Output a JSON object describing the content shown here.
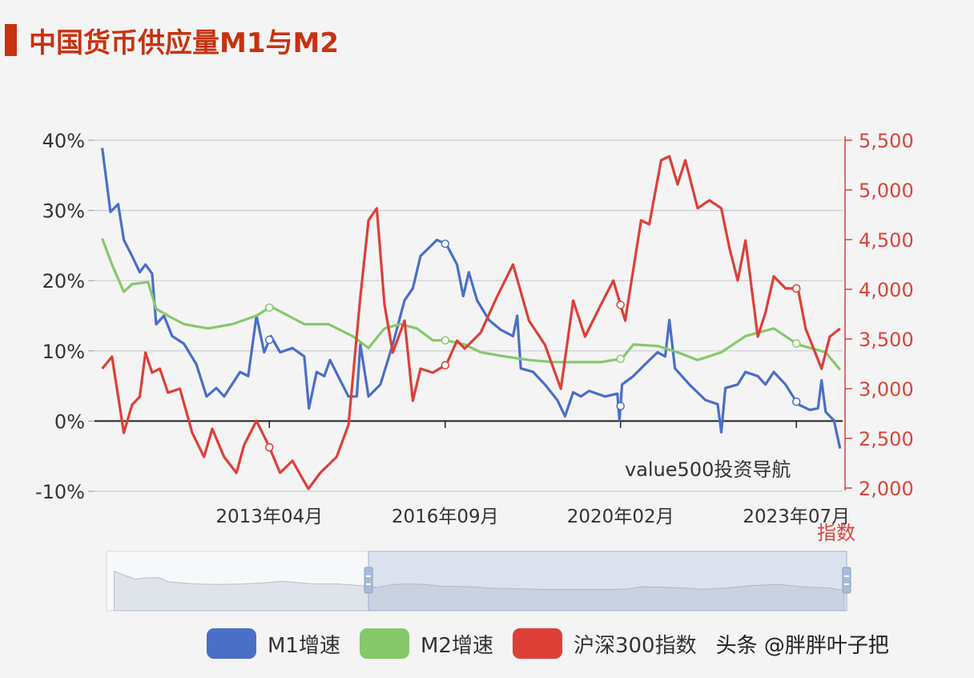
{
  "title": "中国货币供应量M1与M2",
  "watermark": "value500投资导航",
  "credit": "头条 @胖胖叶子把",
  "chart_data": {
    "type": "line",
    "title": "中国货币供应量M1与M2",
    "xlim": [
      2009.85,
      2024.4
    ],
    "x_ticks": [
      {
        "label": "2013年04月",
        "x": 2013.25
      },
      {
        "label": "2016年09月",
        "x": 2016.67
      },
      {
        "label": "2020年02月",
        "x": 2020.08
      },
      {
        "label": "2023年07月",
        "x": 2023.5
      }
    ],
    "y_left": {
      "lim": [
        -10,
        40
      ],
      "ticks": [
        -10,
        0,
        10,
        20,
        30,
        40
      ],
      "tick_labels": [
        "-10%",
        "0%",
        "10%",
        "20%",
        "30%",
        "40%"
      ]
    },
    "y_right": {
      "label": "指数",
      "lim": [
        2000,
        5500
      ],
      "ticks": [
        2000,
        2500,
        3000,
        3500,
        4000,
        4500,
        5000,
        5500
      ],
      "tick_labels": [
        "2,000",
        "2,500",
        "3,000",
        "3,500",
        "4,000",
        "4,500",
        "5,000",
        "5,500"
      ]
    },
    "grid": true,
    "legend_position": "bottom",
    "series": [
      {
        "name": "M1增速",
        "axis": "left",
        "color": "#4a6fc7",
        "points": [
          [
            2010.0,
            38.9
          ],
          [
            2010.16,
            29.8
          ],
          [
            2010.31,
            30.9
          ],
          [
            2010.42,
            25.8
          ],
          [
            2010.58,
            23.5
          ],
          [
            2010.73,
            21.2
          ],
          [
            2010.84,
            22.3
          ],
          [
            2010.97,
            21.0
          ],
          [
            2011.05,
            13.8
          ],
          [
            2011.2,
            15.0
          ],
          [
            2011.36,
            12.1
          ],
          [
            2011.59,
            11.0
          ],
          [
            2011.83,
            8.1
          ],
          [
            2012.03,
            3.5
          ],
          [
            2012.22,
            4.7
          ],
          [
            2012.37,
            3.5
          ],
          [
            2012.68,
            7.0
          ],
          [
            2012.84,
            6.4
          ],
          [
            2013.0,
            15.0
          ],
          [
            2013.15,
            9.8
          ],
          [
            2013.28,
            12.1
          ],
          [
            2013.46,
            9.8
          ],
          [
            2013.7,
            10.4
          ],
          [
            2013.93,
            9.2
          ],
          [
            2014.02,
            1.8
          ],
          [
            2014.17,
            7.0
          ],
          [
            2014.32,
            6.4
          ],
          [
            2014.43,
            8.7
          ],
          [
            2014.63,
            5.8
          ],
          [
            2014.79,
            3.5
          ],
          [
            2014.95,
            3.5
          ],
          [
            2015.02,
            10.9
          ],
          [
            2015.18,
            3.5
          ],
          [
            2015.41,
            5.2
          ],
          [
            2015.65,
            10.9
          ],
          [
            2015.88,
            17.2
          ],
          [
            2016.04,
            18.9
          ],
          [
            2016.19,
            23.5
          ],
          [
            2016.51,
            25.8
          ],
          [
            2016.69,
            25.2
          ],
          [
            2016.9,
            22.3
          ],
          [
            2017.02,
            17.8
          ],
          [
            2017.13,
            21.2
          ],
          [
            2017.29,
            17.2
          ],
          [
            2017.52,
            14.4
          ],
          [
            2017.75,
            13.0
          ],
          [
            2017.99,
            12.1
          ],
          [
            2018.07,
            15.0
          ],
          [
            2018.14,
            7.5
          ],
          [
            2018.38,
            7.0
          ],
          [
            2018.61,
            5.2
          ],
          [
            2018.85,
            3.0
          ],
          [
            2019.0,
            0.7
          ],
          [
            2019.16,
            4.1
          ],
          [
            2019.31,
            3.5
          ],
          [
            2019.47,
            4.3
          ],
          [
            2019.78,
            3.5
          ],
          [
            2020.02,
            3.9
          ],
          [
            2020.06,
            0.1
          ],
          [
            2020.11,
            5.2
          ],
          [
            2020.33,
            6.4
          ],
          [
            2020.56,
            8.1
          ],
          [
            2020.8,
            9.8
          ],
          [
            2020.95,
            9.2
          ],
          [
            2021.03,
            14.4
          ],
          [
            2021.14,
            7.5
          ],
          [
            2021.42,
            5.2
          ],
          [
            2021.73,
            3.0
          ],
          [
            2021.97,
            2.4
          ],
          [
            2022.04,
            -1.6
          ],
          [
            2022.12,
            4.7
          ],
          [
            2022.36,
            5.2
          ],
          [
            2022.51,
            7.0
          ],
          [
            2022.75,
            6.4
          ],
          [
            2022.9,
            5.2
          ],
          [
            2023.06,
            7.0
          ],
          [
            2023.29,
            5.2
          ],
          [
            2023.53,
            2.4
          ],
          [
            2023.76,
            1.6
          ],
          [
            2023.92,
            1.8
          ],
          [
            2023.99,
            5.8
          ],
          [
            2024.07,
            1.3
          ],
          [
            2024.23,
            0.1
          ],
          [
            2024.35,
            -3.9
          ]
        ]
      },
      {
        "name": "M2增速",
        "axis": "left",
        "color": "#85c96a",
        "points": [
          [
            2010.0,
            26.0
          ],
          [
            2010.19,
            22.3
          ],
          [
            2010.42,
            18.4
          ],
          [
            2010.58,
            19.5
          ],
          [
            2010.89,
            19.8
          ],
          [
            2011.05,
            16.0
          ],
          [
            2011.28,
            15.0
          ],
          [
            2011.59,
            13.8
          ],
          [
            2012.06,
            13.2
          ],
          [
            2012.53,
            13.8
          ],
          [
            2013.0,
            15.0
          ],
          [
            2013.28,
            16.3
          ],
          [
            2013.62,
            15.0
          ],
          [
            2013.93,
            13.8
          ],
          [
            2014.4,
            13.8
          ],
          [
            2014.87,
            12.1
          ],
          [
            2015.18,
            10.4
          ],
          [
            2015.49,
            13.2
          ],
          [
            2015.8,
            13.8
          ],
          [
            2016.12,
            13.2
          ],
          [
            2016.43,
            11.5
          ],
          [
            2016.69,
            11.5
          ],
          [
            2017.05,
            10.9
          ],
          [
            2017.36,
            9.8
          ],
          [
            2017.83,
            9.2
          ],
          [
            2018.3,
            8.7
          ],
          [
            2018.77,
            8.4
          ],
          [
            2019.24,
            8.4
          ],
          [
            2019.7,
            8.4
          ],
          [
            2020.11,
            8.9
          ],
          [
            2020.33,
            10.9
          ],
          [
            2020.8,
            10.7
          ],
          [
            2021.19,
            9.8
          ],
          [
            2021.58,
            8.7
          ],
          [
            2022.04,
            9.8
          ],
          [
            2022.51,
            12.1
          ],
          [
            2023.06,
            13.2
          ],
          [
            2023.53,
            10.9
          ],
          [
            2024.07,
            9.8
          ],
          [
            2024.35,
            7.3
          ]
        ]
      },
      {
        "name": "沪深300指数",
        "axis": "right",
        "color": "#de3f36",
        "points": [
          [
            2010.0,
            3202
          ],
          [
            2010.19,
            3322
          ],
          [
            2010.42,
            2556
          ],
          [
            2010.58,
            2838
          ],
          [
            2010.73,
            2919
          ],
          [
            2010.84,
            3363
          ],
          [
            2010.97,
            3161
          ],
          [
            2011.12,
            3202
          ],
          [
            2011.28,
            2960
          ],
          [
            2011.51,
            3000
          ],
          [
            2011.75,
            2556
          ],
          [
            2011.98,
            2314
          ],
          [
            2012.14,
            2597
          ],
          [
            2012.37,
            2314
          ],
          [
            2012.61,
            2153
          ],
          [
            2012.76,
            2435
          ],
          [
            2013.0,
            2677
          ],
          [
            2013.23,
            2435
          ],
          [
            2013.46,
            2153
          ],
          [
            2013.7,
            2274
          ],
          [
            2014.01,
            1992
          ],
          [
            2014.24,
            2153
          ],
          [
            2014.56,
            2314
          ],
          [
            2014.79,
            2637
          ],
          [
            2015.02,
            3927
          ],
          [
            2015.18,
            4694
          ],
          [
            2015.34,
            4815
          ],
          [
            2015.49,
            3847
          ],
          [
            2015.65,
            3363
          ],
          [
            2015.88,
            3685
          ],
          [
            2016.04,
            2879
          ],
          [
            2016.19,
            3202
          ],
          [
            2016.43,
            3161
          ],
          [
            2016.69,
            3242
          ],
          [
            2016.9,
            3484
          ],
          [
            2017.05,
            3403
          ],
          [
            2017.36,
            3564
          ],
          [
            2017.68,
            3927
          ],
          [
            2017.99,
            4250
          ],
          [
            2018.3,
            3685
          ],
          [
            2018.61,
            3443
          ],
          [
            2018.92,
            2999
          ],
          [
            2019.16,
            3887
          ],
          [
            2019.39,
            3524
          ],
          [
            2019.7,
            3847
          ],
          [
            2019.94,
            4089
          ],
          [
            2020.17,
            3685
          ],
          [
            2020.48,
            4694
          ],
          [
            2020.64,
            4654
          ],
          [
            2020.87,
            5298
          ],
          [
            2021.03,
            5339
          ],
          [
            2021.19,
            5056
          ],
          [
            2021.34,
            5298
          ],
          [
            2021.58,
            4815
          ],
          [
            2021.81,
            4896
          ],
          [
            2022.04,
            4815
          ],
          [
            2022.2,
            4411
          ],
          [
            2022.36,
            4089
          ],
          [
            2022.51,
            4492
          ],
          [
            2022.75,
            3524
          ],
          [
            2022.9,
            3766
          ],
          [
            2023.06,
            4130
          ],
          [
            2023.29,
            4009
          ],
          [
            2023.53,
            4009
          ],
          [
            2023.68,
            3605
          ],
          [
            2023.99,
            3202
          ],
          [
            2024.15,
            3524
          ],
          [
            2024.35,
            3605
          ]
        ]
      }
    ],
    "data_zoom": {
      "range_start": 2015.0,
      "range_end": 2024.4
    }
  }
}
